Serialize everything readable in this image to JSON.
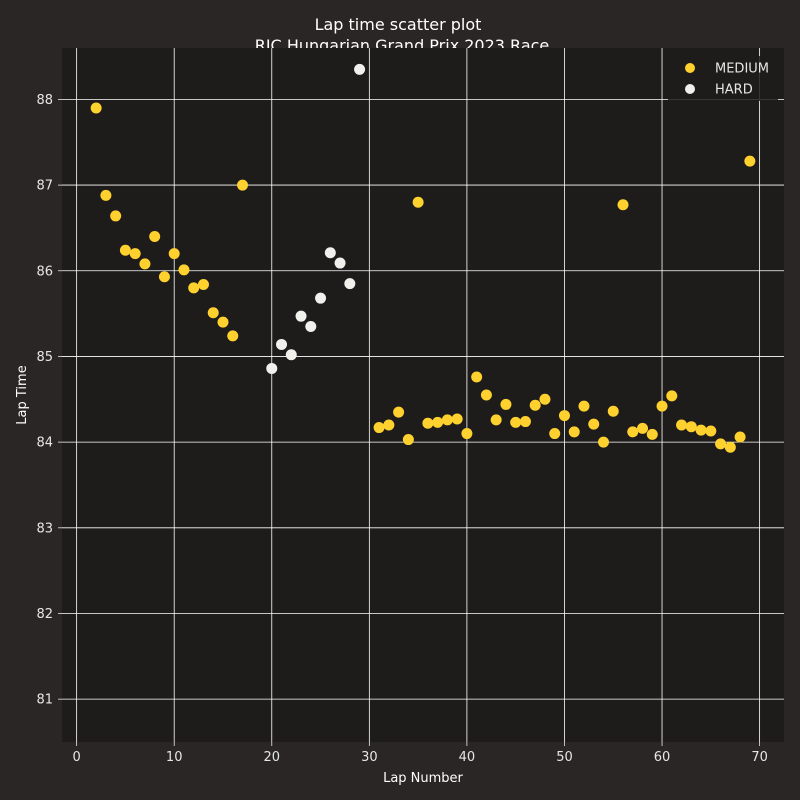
{
  "chart_data": {
    "type": "scatter",
    "title": "Lap time scatter plot",
    "subtitle": "RIC Hungarian Grand Prix 2023 Race",
    "xlabel": "Lap Number",
    "ylabel": "Lap Time",
    "xlim": [
      -1.5,
      72.5
    ],
    "ylim": [
      80.5,
      88.6
    ],
    "xticks": [
      0,
      10,
      20,
      30,
      40,
      50,
      60,
      70
    ],
    "yticks": [
      81,
      82,
      83,
      84,
      85,
      86,
      87,
      88
    ],
    "grid": true,
    "legend_position": "top-right",
    "series": [
      {
        "name": "MEDIUM",
        "color": "#ffd12e",
        "x": [
          2,
          3,
          4,
          5,
          6,
          7,
          8,
          9,
          10,
          11,
          12,
          13,
          14,
          15,
          16,
          17,
          31,
          32,
          33,
          34,
          35,
          36,
          37,
          38,
          39,
          40,
          41,
          42,
          43,
          44,
          45,
          46,
          47,
          48,
          49,
          50,
          51,
          52,
          53,
          54,
          55,
          56,
          57,
          58,
          59,
          60,
          61,
          62,
          63,
          64,
          65,
          66,
          67,
          68,
          69
        ],
        "y": [
          87.9,
          86.88,
          86.64,
          86.24,
          86.2,
          86.08,
          86.4,
          85.93,
          86.2,
          86.01,
          85.8,
          85.84,
          85.51,
          85.4,
          85.24,
          87.0,
          84.17,
          84.2,
          84.35,
          84.03,
          86.8,
          84.22,
          84.23,
          84.26,
          84.27,
          84.1,
          84.76,
          84.55,
          84.26,
          84.44,
          84.23,
          84.24,
          84.43,
          84.5,
          84.1,
          84.31,
          84.12,
          84.42,
          84.21,
          84.0,
          84.36,
          86.77,
          84.12,
          84.16,
          84.09,
          84.42,
          84.54,
          84.2,
          84.18,
          84.14,
          84.13,
          83.98,
          83.94,
          84.06,
          87.28
        ]
      },
      {
        "name": "HARD",
        "color": "#f0f0ec",
        "x": [
          20,
          21,
          22,
          23,
          24,
          25,
          26,
          27,
          28,
          29
        ],
        "y": [
          84.86,
          85.14,
          85.02,
          85.47,
          85.35,
          85.68,
          86.21,
          86.09,
          85.85,
          88.35
        ]
      }
    ]
  }
}
